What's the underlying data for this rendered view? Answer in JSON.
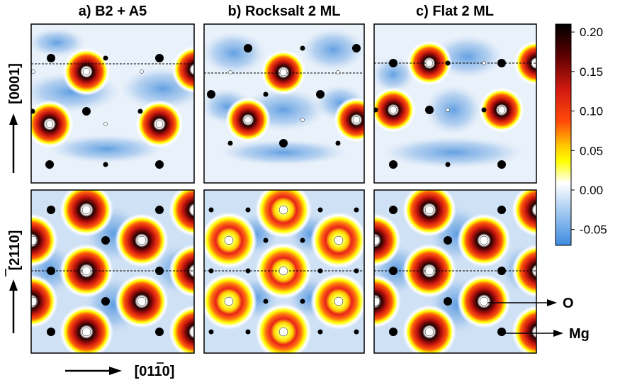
{
  "panels": {
    "a": {
      "title": "a) B2 + A5"
    },
    "b": {
      "title": "b) Rocksalt 2 ML"
    },
    "c": {
      "title": "c) Flat 2 ML"
    }
  },
  "axes": {
    "vertical_top": "[0001]",
    "vertical_bottom": "[2110]",
    "horizontal": "[0110]"
  },
  "atoms": {
    "o_label": "O",
    "mg_label": "Mg"
  },
  "colorbar": {
    "ticks": [
      "0.20",
      "0.15",
      "0.10",
      "0.05",
      "0.00",
      "-0.05"
    ],
    "tick_values": [
      0.2,
      0.15,
      0.1,
      0.05,
      0.0,
      -0.05
    ],
    "range": [
      -0.07,
      0.21
    ]
  },
  "colors": {
    "background_blue": "#dce9f7",
    "light_blue": "#b9d3f0",
    "mid_blue": "#7fb0e6",
    "deep_blue": "#4b92de",
    "yellow": "#ffff00",
    "red": "#e8221a",
    "dark": "#1a0000"
  }
}
